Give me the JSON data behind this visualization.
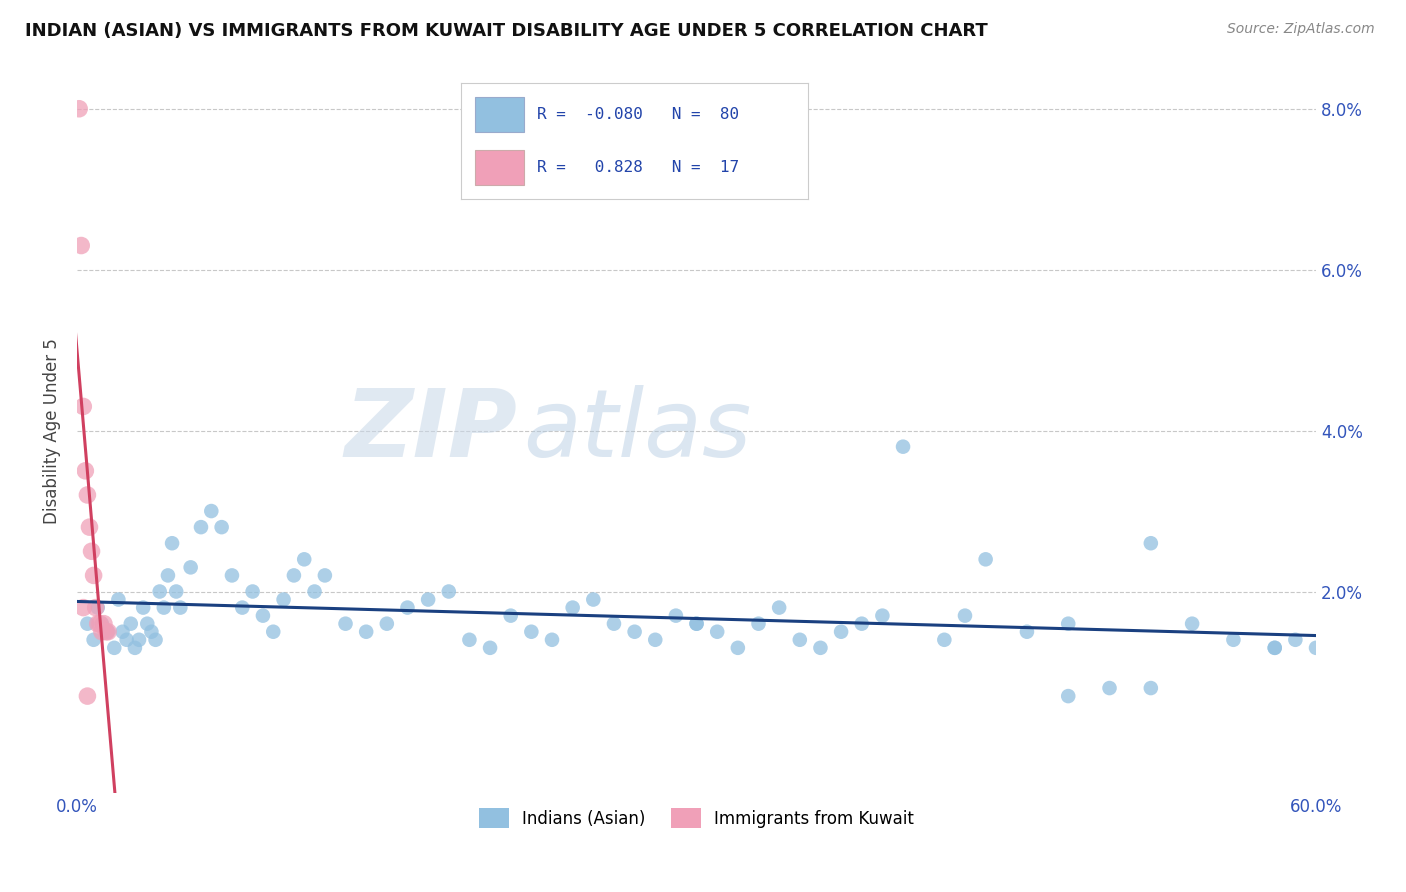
{
  "title": "INDIAN (ASIAN) VS IMMIGRANTS FROM KUWAIT DISABILITY AGE UNDER 5 CORRELATION CHART",
  "source_text": "Source: ZipAtlas.com",
  "ylabel": "Disability Age Under 5",
  "watermark_zip": "ZIP",
  "watermark_atlas": "atlas",
  "xmin": 0.0,
  "xmax": 0.6,
  "ymin": -0.005,
  "ymax": 0.085,
  "yticks": [
    0.0,
    0.02,
    0.04,
    0.06,
    0.08
  ],
  "ytick_labels_right": [
    "",
    "2.0%",
    "4.0%",
    "6.0%",
    "8.0%"
  ],
  "xtick_positions": [
    0.0,
    0.1,
    0.2,
    0.3,
    0.4,
    0.5,
    0.6
  ],
  "xtick_labels": [
    "0.0%",
    "",
    "",
    "",
    "",
    "",
    "60.0%"
  ],
  "blue_color": "#92c0e0",
  "pink_color": "#f0a0b8",
  "blue_line_color": "#1a4080",
  "pink_line_color": "#d04060",
  "legend_blue_r": "R = -0.080",
  "legend_blue_n": "N = 80",
  "legend_pink_r": "R =  0.828",
  "legend_pink_n": "N = 17",
  "blue_scatter_x": [
    0.005,
    0.008,
    0.01,
    0.012,
    0.015,
    0.018,
    0.02,
    0.022,
    0.024,
    0.026,
    0.028,
    0.03,
    0.032,
    0.034,
    0.036,
    0.038,
    0.04,
    0.042,
    0.044,
    0.046,
    0.048,
    0.05,
    0.055,
    0.06,
    0.065,
    0.07,
    0.075,
    0.08,
    0.085,
    0.09,
    0.095,
    0.1,
    0.105,
    0.11,
    0.115,
    0.12,
    0.13,
    0.14,
    0.15,
    0.16,
    0.17,
    0.18,
    0.19,
    0.2,
    0.21,
    0.22,
    0.23,
    0.24,
    0.25,
    0.26,
    0.27,
    0.28,
    0.29,
    0.3,
    0.31,
    0.32,
    0.33,
    0.34,
    0.35,
    0.36,
    0.37,
    0.38,
    0.39,
    0.4,
    0.42,
    0.44,
    0.46,
    0.48,
    0.5,
    0.52,
    0.54,
    0.56,
    0.58,
    0.3,
    0.48,
    0.52,
    0.58,
    0.6,
    0.59,
    0.43
  ],
  "blue_scatter_y": [
    0.016,
    0.014,
    0.018,
    0.016,
    0.015,
    0.013,
    0.019,
    0.015,
    0.014,
    0.016,
    0.013,
    0.014,
    0.018,
    0.016,
    0.015,
    0.014,
    0.02,
    0.018,
    0.022,
    0.026,
    0.02,
    0.018,
    0.023,
    0.028,
    0.03,
    0.028,
    0.022,
    0.018,
    0.02,
    0.017,
    0.015,
    0.019,
    0.022,
    0.024,
    0.02,
    0.022,
    0.016,
    0.015,
    0.016,
    0.018,
    0.019,
    0.02,
    0.014,
    0.013,
    0.017,
    0.015,
    0.014,
    0.018,
    0.019,
    0.016,
    0.015,
    0.014,
    0.017,
    0.016,
    0.015,
    0.013,
    0.016,
    0.018,
    0.014,
    0.013,
    0.015,
    0.016,
    0.017,
    0.038,
    0.014,
    0.024,
    0.015,
    0.007,
    0.008,
    0.008,
    0.016,
    0.014,
    0.013,
    0.016,
    0.016,
    0.026,
    0.013,
    0.013,
    0.014,
    0.017
  ],
  "pink_scatter_x": [
    0.001,
    0.002,
    0.003,
    0.004,
    0.005,
    0.006,
    0.007,
    0.008,
    0.009,
    0.01,
    0.011,
    0.012,
    0.013,
    0.014,
    0.015,
    0.003,
    0.005
  ],
  "pink_scatter_y": [
    0.08,
    0.063,
    0.043,
    0.035,
    0.032,
    0.028,
    0.025,
    0.022,
    0.018,
    0.016,
    0.016,
    0.015,
    0.016,
    0.015,
    0.015,
    0.018,
    0.007
  ]
}
